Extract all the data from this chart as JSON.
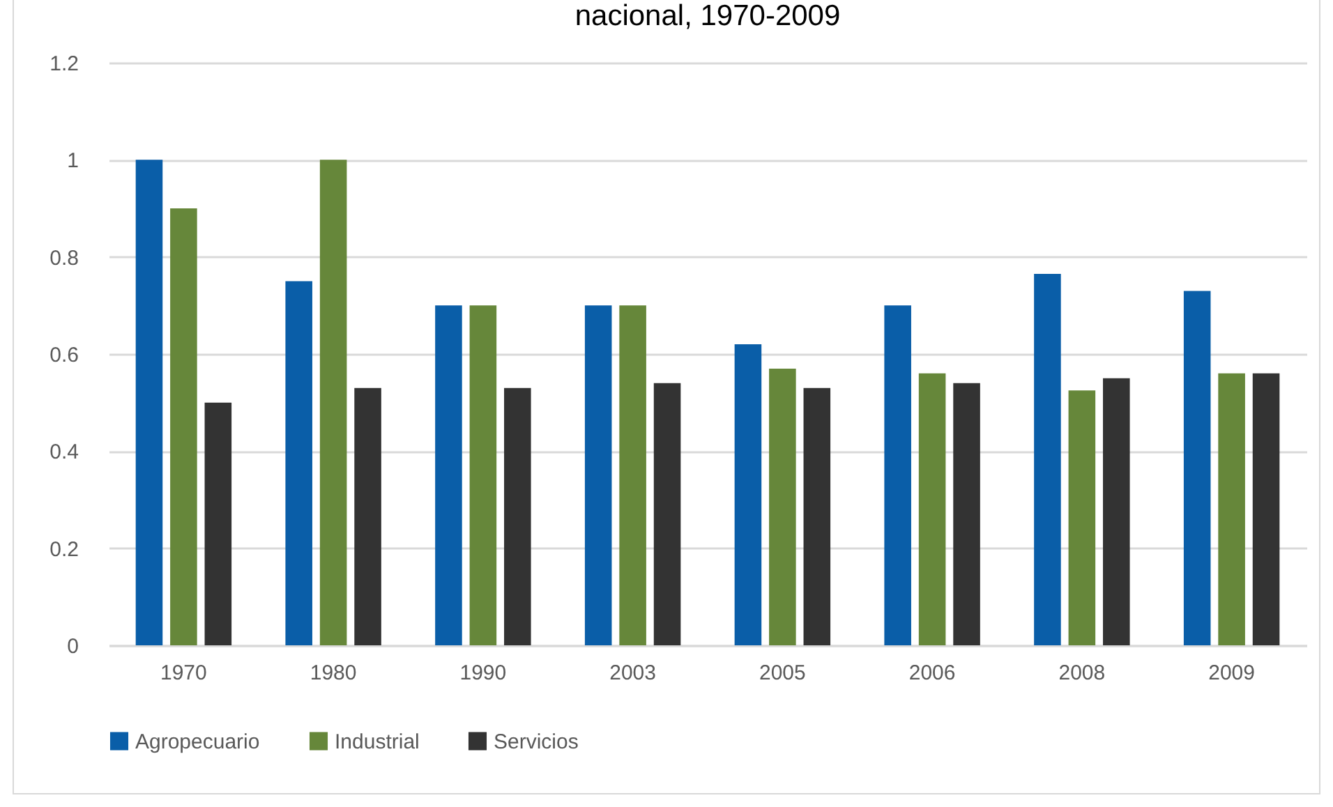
{
  "chart_data": {
    "type": "bar",
    "title": "nacional, 1970-2009",
    "categories": [
      "1970",
      "1980",
      "1990",
      "2003",
      "2005",
      "2006",
      "2008",
      "2009"
    ],
    "series": [
      {
        "name": "Agropecuario",
        "color": "#0a5ea8",
        "values": [
          1.0,
          0.75,
          0.7,
          0.7,
          0.62,
          0.7,
          0.765,
          0.73
        ]
      },
      {
        "name": "Industrial",
        "color": "#66873a",
        "values": [
          0.9,
          1.0,
          0.7,
          0.7,
          0.57,
          0.56,
          0.525,
          0.56
        ]
      },
      {
        "name": "Servicios",
        "color": "#333333",
        "values": [
          0.5,
          0.53,
          0.53,
          0.54,
          0.53,
          0.54,
          0.55,
          0.56
        ]
      }
    ],
    "ylim": [
      0,
      1.2
    ],
    "yticks": [
      0,
      0.2,
      0.4,
      0.6,
      0.8,
      1,
      1.2
    ],
    "grid": "y",
    "legend": "bottom"
  }
}
